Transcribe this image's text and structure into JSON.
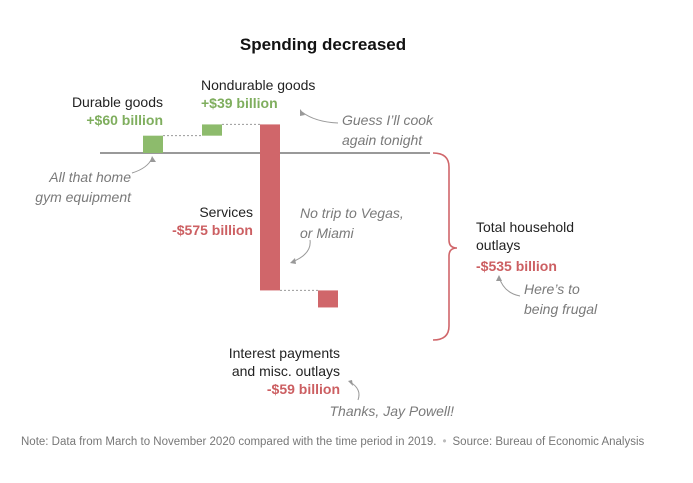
{
  "chart_data": {
    "type": "waterfall",
    "title": "Spending decreased",
    "unit": "billion",
    "series": [
      {
        "category": [
          "Durable goods"
        ],
        "value": 60,
        "value_label": "+$60 billion",
        "annotation": [
          "All that home",
          "gym equipment"
        ]
      },
      {
        "category": [
          "Nondurable goods"
        ],
        "value": 39,
        "value_label": "+$39 billion",
        "annotation": [
          "Guess I’ll cook",
          "again tonight"
        ]
      },
      {
        "category": [
          "Services"
        ],
        "value": -575,
        "value_label": "-$575 billion",
        "annotation": [
          "No trip to Vegas,",
          "or Miami"
        ]
      },
      {
        "category": [
          "Interest payments",
          "and misc. outlays"
        ],
        "value": -59,
        "value_label": "-$59 billion",
        "annotation": [
          "Thanks, Jay Powell!"
        ]
      }
    ],
    "total": {
      "category": [
        "Total household",
        "outlays"
      ],
      "value": -535,
      "value_label": "-$535 billion",
      "annotation": [
        "Here’s to",
        "being frugal"
      ]
    },
    "colors": {
      "positive": "#8dbb6c",
      "negative": "#d0666a",
      "baseline": "#333333",
      "connector": "#999999",
      "annotation": "#7a7a7a"
    }
  },
  "footer": {
    "note": "Note: Data from March to November 2020 compared with the time period in 2019.",
    "source": "Source: Bureau of Economic Analysis"
  }
}
